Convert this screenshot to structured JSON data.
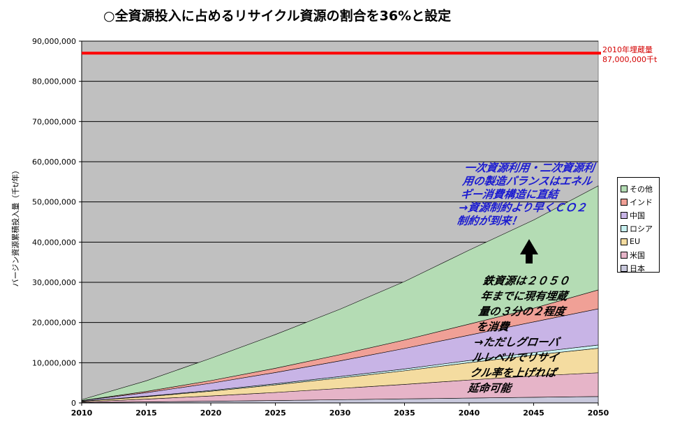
{
  "title": "○全資源投入に占めるリサイクル資源の割合を36%と設定",
  "reference_line": {
    "label_line1": "2010年埋蔵量",
    "label_line2": "87,000,000千t",
    "value": 87000000,
    "color": "#ff0000"
  },
  "annotations": {
    "blue_lines": [
      "一次資源利用・二次資源利",
      "用の製造バランスはエネル",
      "ギー消費構造に直結",
      "→資源制約より早くＣＯ２",
      "制約が到来！"
    ],
    "black_lines": [
      "鉄資源は２０５０",
      "年までに現有埋蔵",
      "量の３分の２程度",
      "を消費",
      "→ただしグローバ",
      "ルレベルでリサイ",
      "クル率を上げれば",
      "延命可能"
    ],
    "blue_color": "#1b1bd0"
  },
  "colors": {
    "plot_background": "#c0c0c0",
    "日本": "#c8c8dc",
    "米国": "#e6b4c8",
    "EU": "#f4dca0",
    "ロシア": "#c8f0f0",
    "中国": "#c8b4e6",
    "インド": "#f0a096",
    "その他": "#b4dcb4"
  },
  "chart_data": {
    "type": "area",
    "stacked": true,
    "title": "○全資源投入に占めるリサイクル資源の割合を36%と設定",
    "xlabel": "",
    "ylabel": "バージン資源累積投入量（千t/年）",
    "x": [
      2010,
      2015,
      2020,
      2025,
      2030,
      2035,
      2040,
      2045,
      2050
    ],
    "xticks": [
      "2010",
      "2015",
      "2020",
      "2025",
      "2030",
      "2035",
      "2040",
      "2045",
      "2050"
    ],
    "ylim": [
      0,
      90000000
    ],
    "yticks": [
      0,
      10000000,
      20000000,
      30000000,
      40000000,
      50000000,
      60000000,
      70000000,
      80000000,
      90000000
    ],
    "ytick_labels": [
      "0",
      "10,000,000",
      "20,000,000",
      "30,000,000",
      "40,000,000",
      "50,000,000",
      "60,000,000",
      "70,000,000",
      "80,000,000",
      "90,000,000"
    ],
    "grid": true,
    "legend": "right",
    "series": [
      {
        "name": "日本",
        "values": [
          100000,
          250000,
          420000,
          600000,
          800000,
          1000000,
          1200000,
          1400000,
          1600000
        ]
      },
      {
        "name": "米国",
        "values": [
          150000,
          700000,
          1300000,
          2000000,
          2800000,
          3600000,
          4500000,
          5300000,
          5900000
        ]
      },
      {
        "name": "EU",
        "values": [
          150000,
          600000,
          1200000,
          1900000,
          2600000,
          3400000,
          4300000,
          5200000,
          6100000
        ]
      },
      {
        "name": "ロシア",
        "values": [
          30000,
          100000,
          180000,
          260000,
          360000,
          450000,
          550000,
          650000,
          800000
        ]
      },
      {
        "name": "中国",
        "values": [
          120000,
          900000,
          1800000,
          2800000,
          3900000,
          5100000,
          6300000,
          7600000,
          9000000
        ]
      },
      {
        "name": "インド",
        "values": [
          40000,
          300000,
          650000,
          1050000,
          1550000,
          2100000,
          2750000,
          3400000,
          4700000
        ]
      },
      {
        "name": "その他",
        "values": [
          210000,
          2650000,
          5550000,
          8390000,
          11290000,
          14550000,
          18400000,
          21950000,
          25900000
        ]
      }
    ],
    "reference_line": {
      "label": "2010年埋蔵量 87,000,000千t",
      "value": 87000000
    }
  }
}
